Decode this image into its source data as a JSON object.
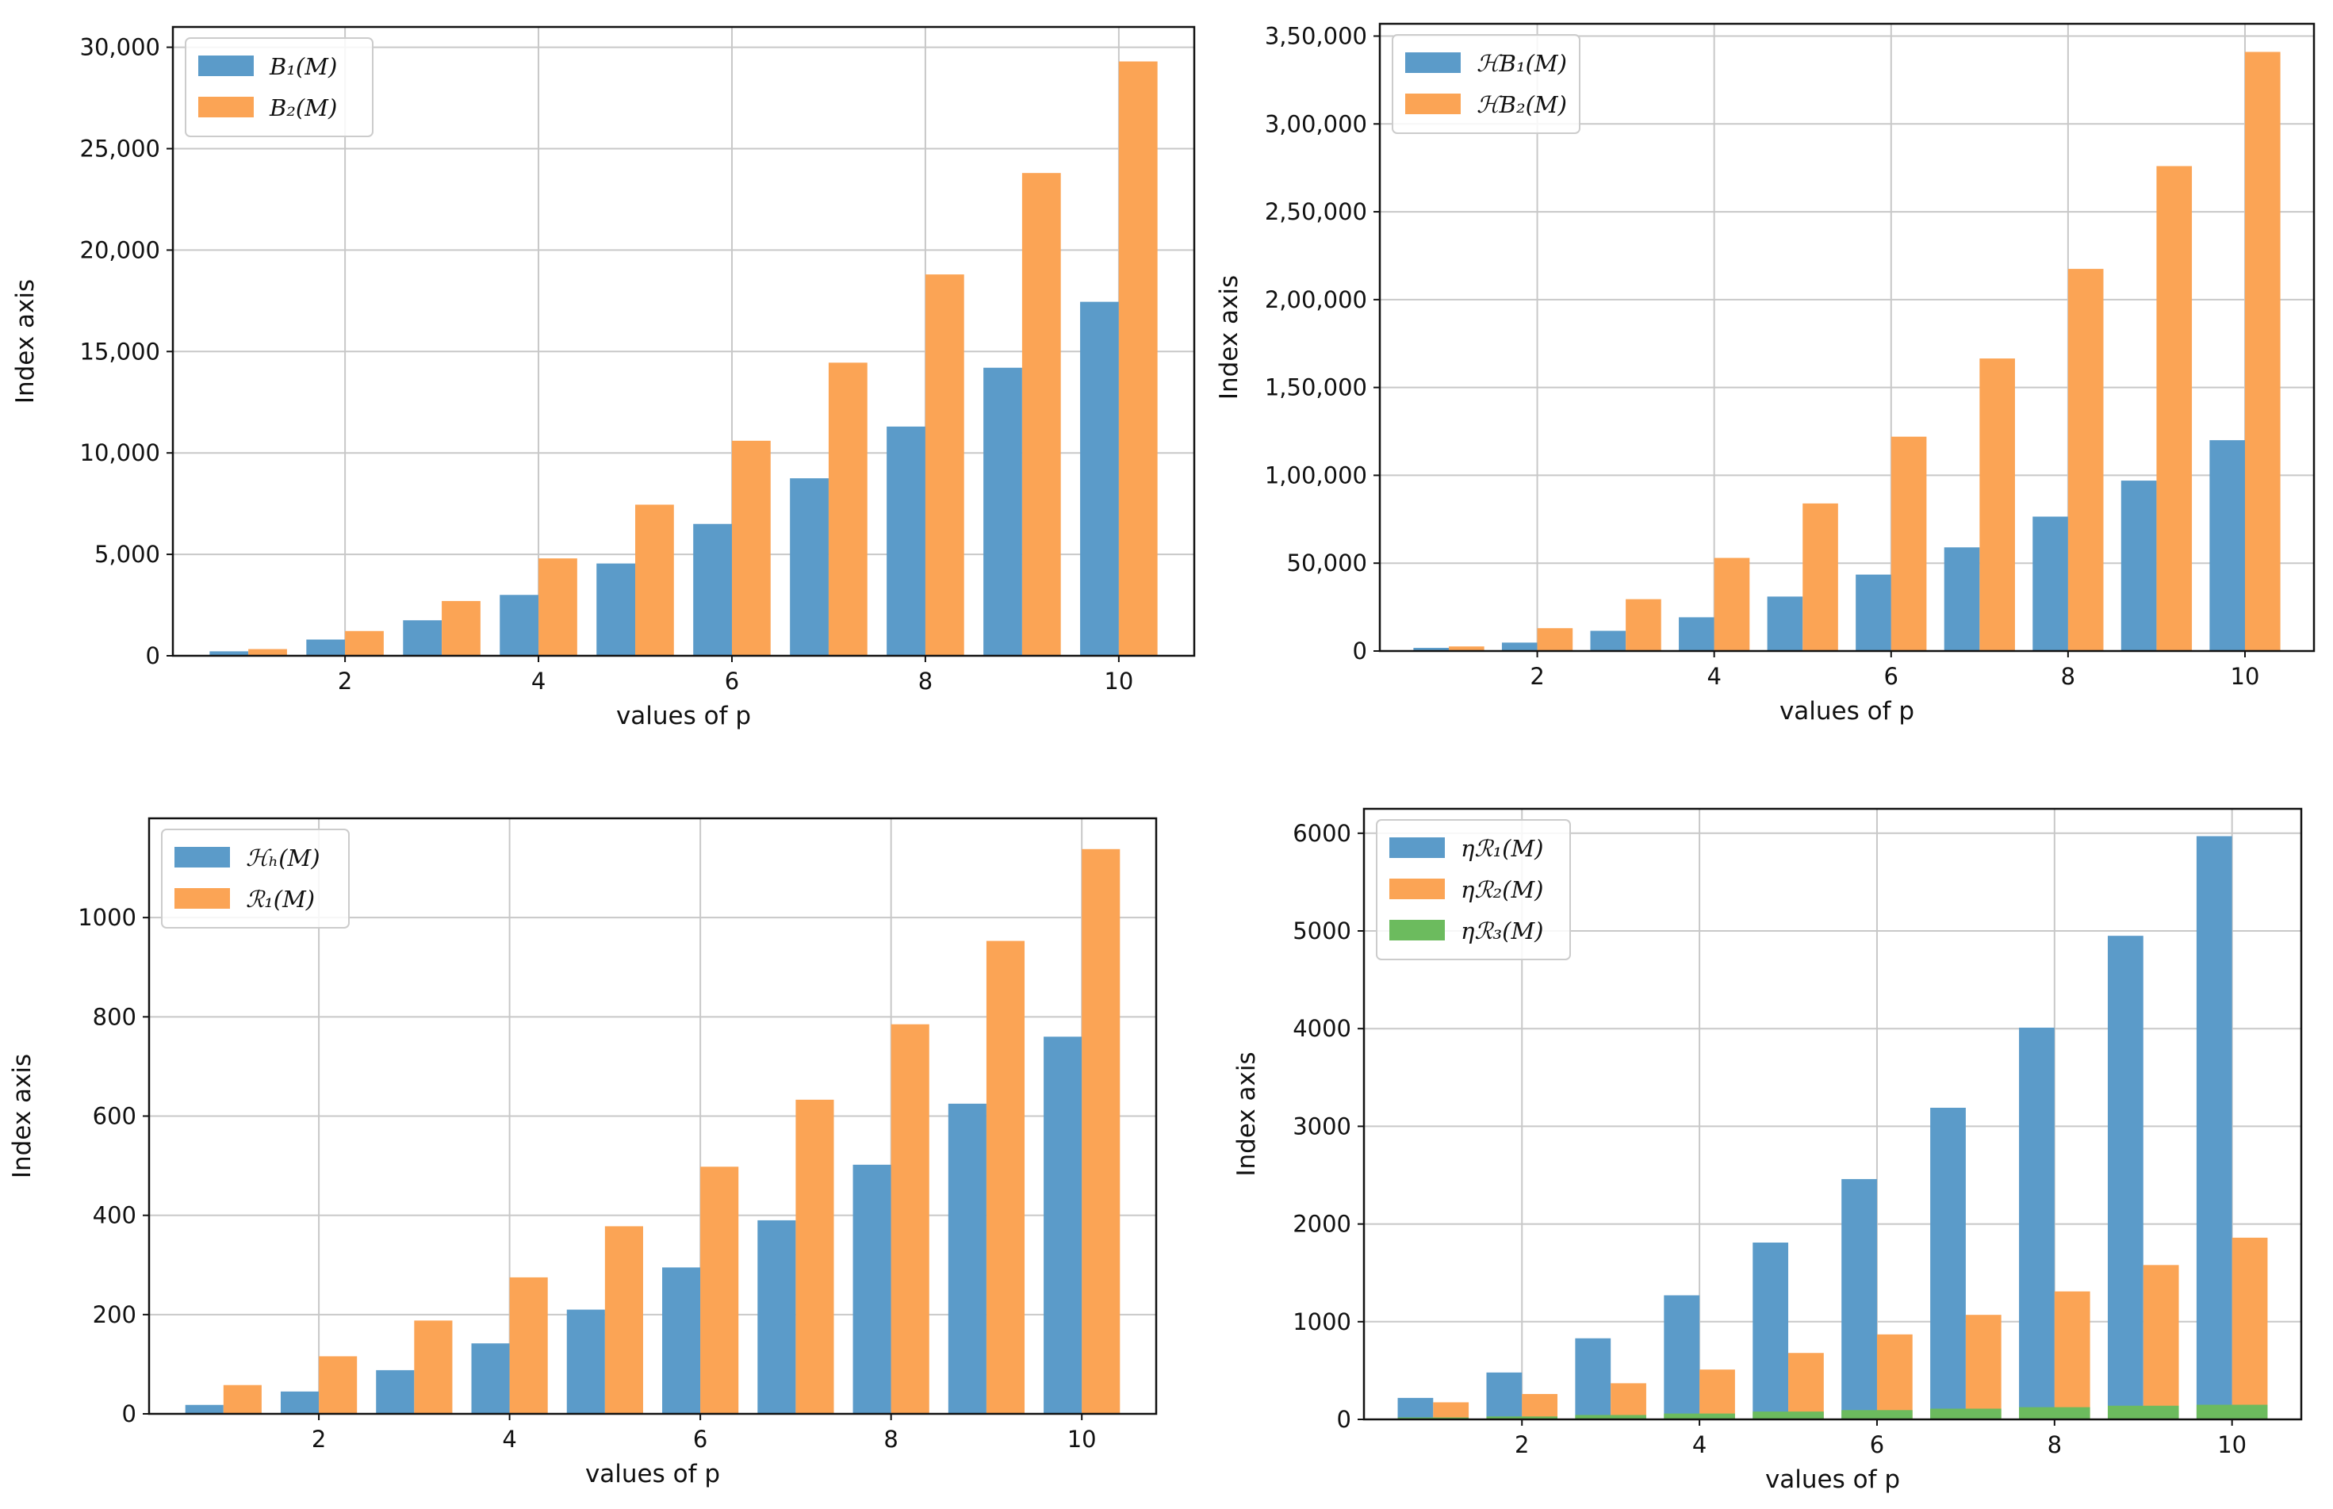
{
  "chart_data": [
    {
      "type": "bar",
      "x": [
        1,
        2,
        3,
        4,
        5,
        6,
        7,
        8,
        9,
        10
      ],
      "xticks": [
        "2",
        "4",
        "6",
        "8",
        "10"
      ],
      "yticks": [
        "0",
        "5,000",
        "10,000",
        "15,000",
        "20,000",
        "25,000",
        "30,000"
      ],
      "xlabel": "values of p",
      "ylabel": "Index axis",
      "ylim": [
        0,
        31000
      ],
      "grid": true,
      "legend": "top-left",
      "series": [
        {
          "name": "B₁(M)",
          "color": "#5b9bc9",
          "values": [
            220,
            800,
            1750,
            3000,
            4550,
            6500,
            8750,
            11300,
            14200,
            17450
          ]
        },
        {
          "name": "B₂(M)",
          "color": "#fba455",
          "values": [
            330,
            1220,
            2700,
            4800,
            7450,
            10600,
            14450,
            18800,
            23800,
            29300
          ]
        }
      ]
    },
    {
      "type": "bar",
      "x": [
        1,
        2,
        3,
        4,
        5,
        6,
        7,
        8,
        9,
        10
      ],
      "xticks": [
        "2",
        "4",
        "6",
        "8",
        "10"
      ],
      "yticks": [
        "0",
        "50,000",
        "1,00,000",
        "1,50,000",
        "2,00,000",
        "2,50,000",
        "3,00,000",
        "3,50,000"
      ],
      "xlabel": "values of p",
      "ylabel": "Index axis",
      "ylim": [
        0,
        357000
      ],
      "grid": true,
      "legend": "top-left",
      "series": [
        {
          "name": "ℋB₁(M)",
          "color": "#5b9bc9",
          "values": [
            1800,
            4800,
            11500,
            19200,
            31000,
            43500,
            59000,
            76500,
            97000,
            120000
          ]
        },
        {
          "name": "ℋB₂(M)",
          "color": "#fba455",
          "values": [
            2600,
            13000,
            29500,
            53000,
            84000,
            122000,
            166500,
            217500,
            276000,
            341000
          ]
        }
      ]
    },
    {
      "type": "bar",
      "x": [
        1,
        2,
        3,
        4,
        5,
        6,
        7,
        8,
        9,
        10
      ],
      "xticks": [
        "2",
        "4",
        "6",
        "8",
        "10"
      ],
      "yticks": [
        "0",
        "200",
        "400",
        "600",
        "800",
        "1000"
      ],
      "xlabel": "values of p",
      "ylabel": "Index axis",
      "ylim": [
        0,
        1200
      ],
      "grid": true,
      "legend": "top-left",
      "series": [
        {
          "name": "ℋₕ(M)",
          "color": "#5b9bc9",
          "values": [
            18,
            45,
            88,
            142,
            210,
            295,
            390,
            502,
            625,
            760
          ]
        },
        {
          "name": "ℛ₁(M)",
          "color": "#fba455",
          "values": [
            58,
            116,
            188,
            275,
            378,
            498,
            633,
            785,
            953,
            1138
          ]
        }
      ]
    },
    {
      "type": "bar",
      "x": [
        1,
        2,
        3,
        4,
        5,
        6,
        7,
        8,
        9,
        10
      ],
      "xticks": [
        "2",
        "4",
        "6",
        "8",
        "10"
      ],
      "yticks": [
        "0",
        "1000",
        "2000",
        "3000",
        "4000",
        "5000",
        "6000"
      ],
      "xlabel": "values of p",
      "ylabel": "Index axis",
      "ylim": [
        0,
        6250
      ],
      "grid": true,
      "legend": "top-left",
      "overlay_third_series": true,
      "series": [
        {
          "name": "ηℛ₁(M)",
          "color": "#5b9bc9",
          "values": [
            220,
            480,
            830,
            1270,
            1810,
            2460,
            3190,
            4010,
            4950,
            5970
          ]
        },
        {
          "name": "ηℛ₂(M)",
          "color": "#fba455",
          "values": [
            175,
            260,
            370,
            510,
            680,
            870,
            1070,
            1310,
            1580,
            1860
          ]
        },
        {
          "name": "ηℛ₃(M)",
          "color": "#6cbb5e",
          "values": [
            20,
            30,
            45,
            60,
            80,
            95,
            110,
            125,
            140,
            150
          ]
        }
      ]
    }
  ]
}
